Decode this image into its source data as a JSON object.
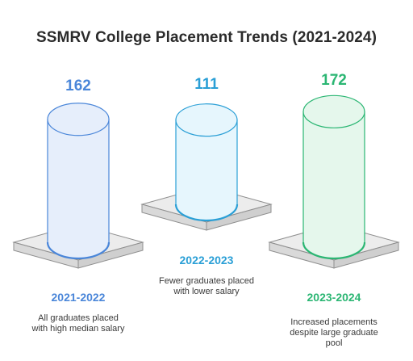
{
  "title": "SSMRV College Placement Trends (2021-2024)",
  "chart_data": {
    "type": "bar",
    "title": "SSMRV College Placement Trends (2021-2024)",
    "categories": [
      "2021-2022",
      "2022-2023",
      "2023-2024"
    ],
    "values": [
      162,
      111,
      172
    ],
    "descriptions": [
      [
        "All graduates placed",
        "with high median salary"
      ],
      [
        "Fewer graduates placed",
        "with lower salary"
      ],
      [
        "Increased placements",
        "despite large graduate",
        "pool"
      ]
    ],
    "colors": [
      {
        "label": "#4a86d9",
        "fill": "#e6eefb",
        "stroke": "#4a86d9"
      },
      {
        "label": "#2a9fd6",
        "fill": "#e6f6fd",
        "stroke": "#2a9fd6"
      },
      {
        "label": "#2bb673",
        "fill": "#e5f7ec",
        "stroke": "#2bb673"
      }
    ]
  }
}
